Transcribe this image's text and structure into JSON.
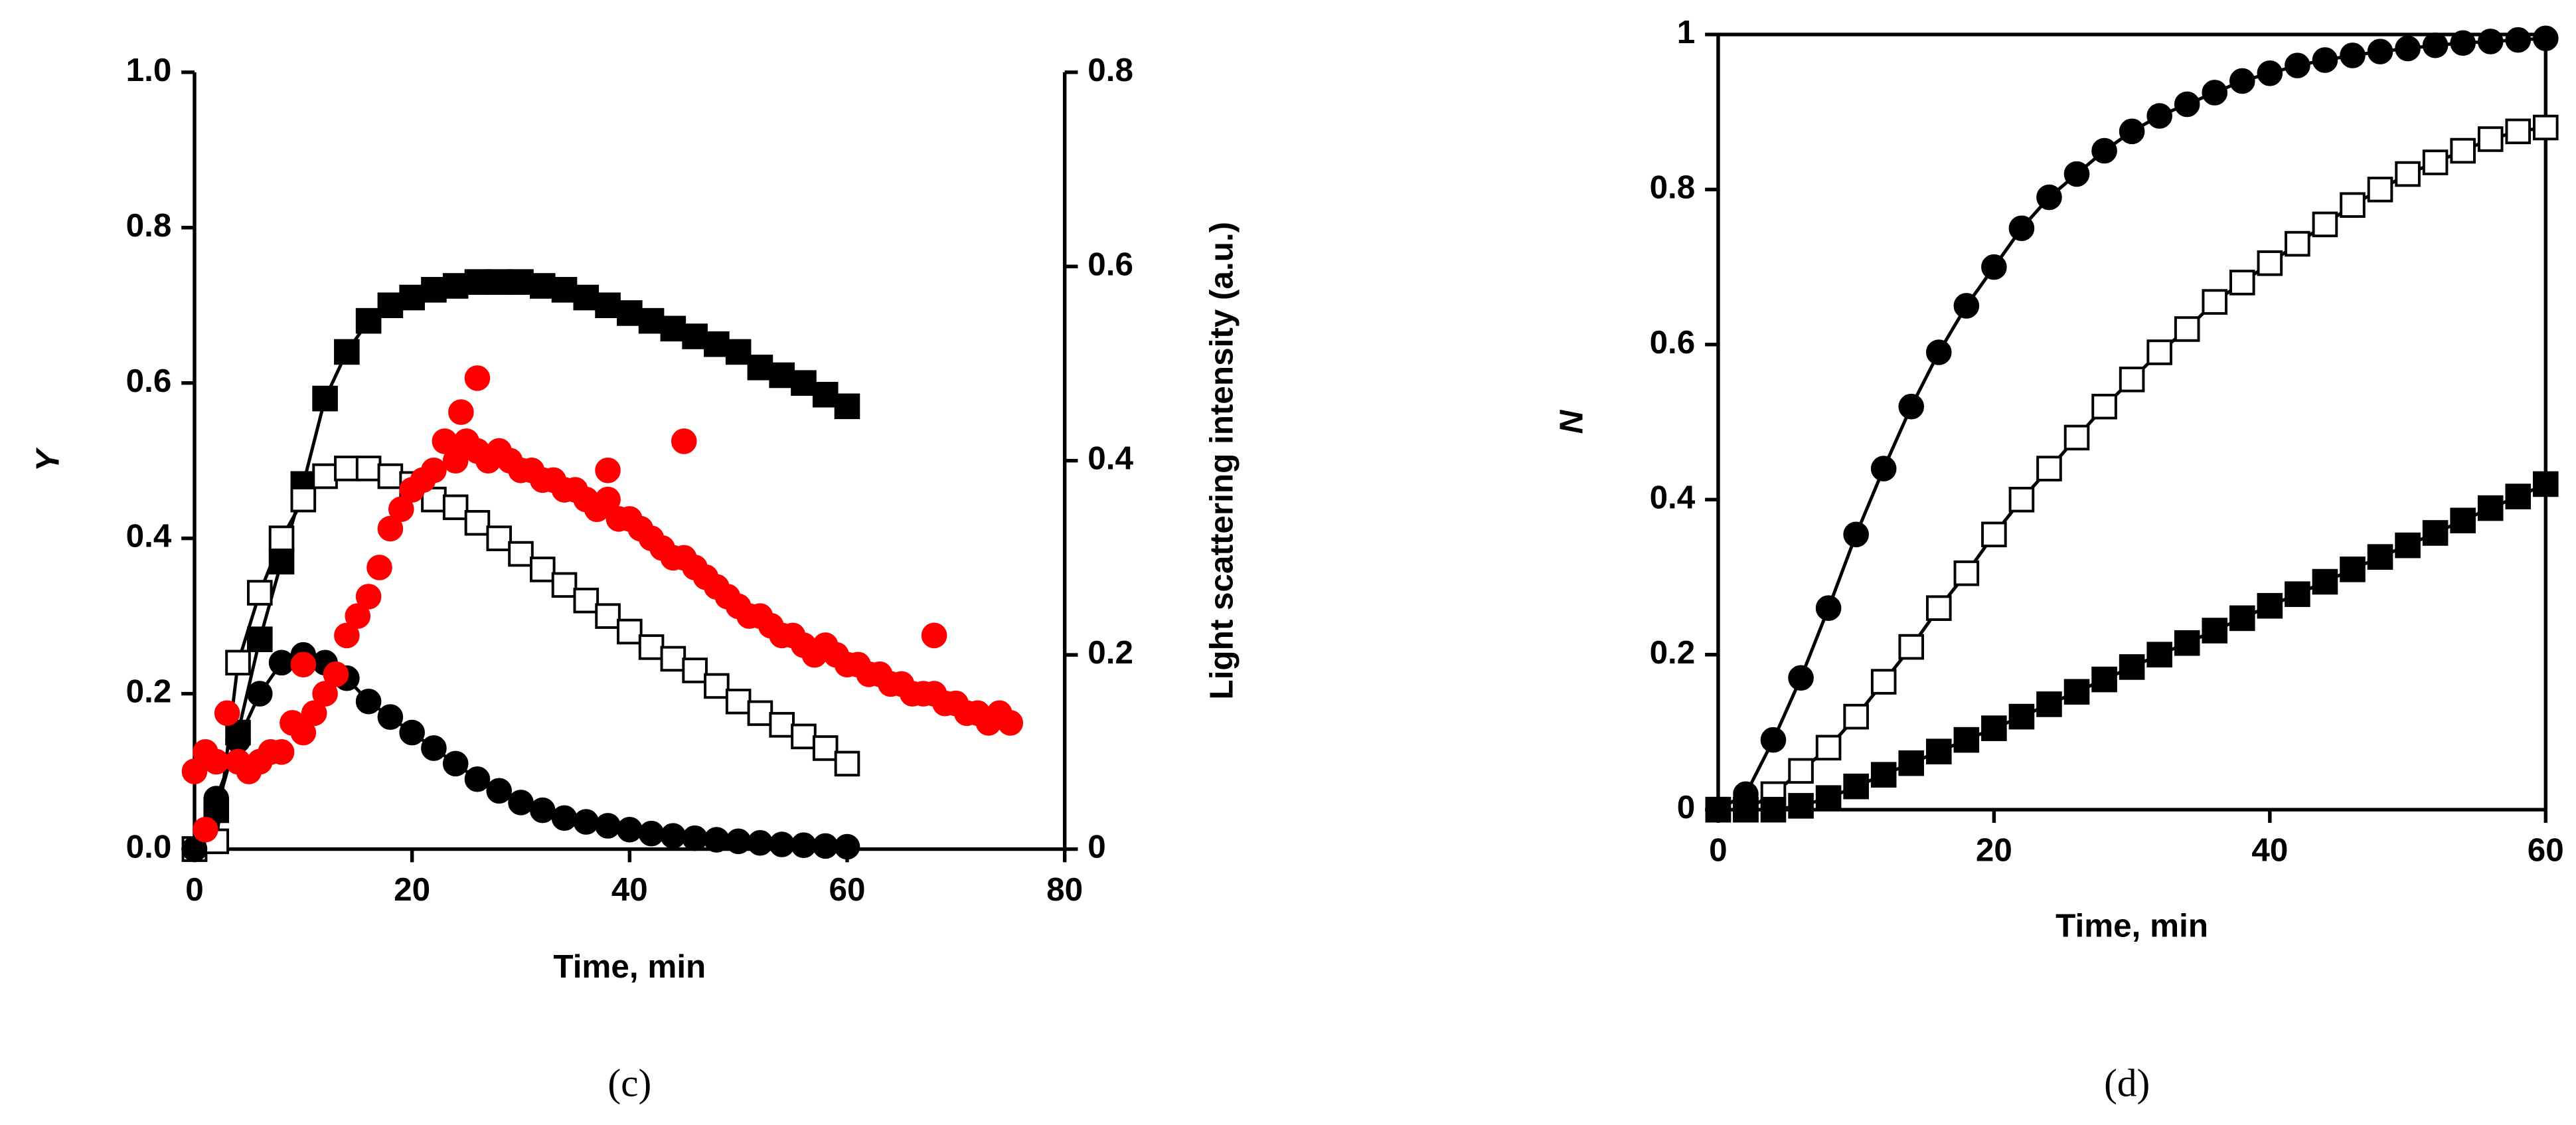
{
  "chart_data": [
    {
      "type": "scatter",
      "caption": "(c)",
      "xlabel": "Time, min",
      "ylabel": "Y",
      "y2label": "Light scattering intensity (a.u.)",
      "xlim": [
        0,
        80
      ],
      "xticks": [
        0,
        20,
        40,
        60,
        80
      ],
      "ylim": [
        0,
        1
      ],
      "yticks": [
        {
          "value": 0,
          "label": "0.0"
        },
        0.2,
        0.4,
        0.6,
        0.8,
        {
          "value": 1,
          "label": "1.0"
        }
      ],
      "y2lim": [
        0,
        0.8
      ],
      "y2ticks": [
        0,
        0.2,
        0.4,
        0.6,
        0.8
      ],
      "series": [
        {
          "marker": "square",
          "color": "#000000",
          "fill": "#000000",
          "line": true,
          "x": [
            0,
            2,
            4,
            6,
            8,
            10,
            12,
            14,
            16,
            18,
            20,
            22,
            24,
            26,
            28,
            30,
            32,
            34,
            36,
            38,
            40,
            42,
            44,
            46,
            48,
            50,
            52,
            54,
            56,
            58,
            60
          ],
          "values": [
            0,
            0.05,
            0.15,
            0.27,
            0.37,
            0.47,
            0.58,
            0.64,
            0.68,
            0.7,
            0.71,
            0.72,
            0.725,
            0.73,
            0.73,
            0.73,
            0.725,
            0.72,
            0.71,
            0.7,
            0.69,
            0.68,
            0.67,
            0.66,
            0.65,
            0.64,
            0.62,
            0.61,
            0.6,
            0.585,
            0.57
          ]
        },
        {
          "marker": "square",
          "color": "#000000",
          "fill": "#ffffff",
          "line": true,
          "x": [
            0,
            2,
            4,
            6,
            8,
            10,
            12,
            14,
            16,
            18,
            20,
            22,
            24,
            26,
            28,
            30,
            32,
            34,
            36,
            38,
            40,
            42,
            44,
            46,
            48,
            50,
            52,
            54,
            56,
            58,
            60
          ],
          "values": [
            0,
            0.01,
            0.24,
            0.33,
            0.4,
            0.45,
            0.48,
            0.49,
            0.49,
            0.48,
            0.47,
            0.45,
            0.44,
            0.42,
            0.4,
            0.38,
            0.36,
            0.34,
            0.32,
            0.3,
            0.28,
            0.26,
            0.245,
            0.23,
            0.21,
            0.19,
            0.175,
            0.16,
            0.145,
            0.13,
            0.11
          ]
        },
        {
          "marker": "circle",
          "color": "#000000",
          "fill": "#000000",
          "line": true,
          "x": [
            0,
            2,
            4,
            6,
            8,
            10,
            12,
            14,
            16,
            18,
            20,
            22,
            24,
            26,
            28,
            30,
            32,
            34,
            36,
            38,
            40,
            42,
            44,
            46,
            48,
            50,
            52,
            54,
            56,
            58,
            60
          ],
          "values": [
            0,
            0.065,
            0.14,
            0.2,
            0.24,
            0.25,
            0.24,
            0.22,
            0.19,
            0.17,
            0.15,
            0.13,
            0.11,
            0.09,
            0.075,
            0.06,
            0.05,
            0.04,
            0.035,
            0.03,
            0.025,
            0.02,
            0.017,
            0.014,
            0.012,
            0.01,
            0.008,
            0.006,
            0.005,
            0.004,
            0.003
          ]
        },
        {
          "marker": "circle",
          "color": "#ff0000",
          "fill": "#ff0000",
          "line": false,
          "axis": "y2",
          "x": [
            0,
            1,
            2,
            3,
            4,
            5,
            6,
            7,
            8,
            9,
            10,
            11,
            12,
            13,
            14,
            15,
            16,
            17,
            18,
            19,
            20,
            21,
            22,
            23,
            24,
            25,
            26,
            27,
            28,
            29,
            30,
            31,
            32,
            33,
            34,
            35,
            36,
            37,
            38,
            39,
            40,
            41,
            42,
            43,
            44,
            45,
            46,
            47,
            48,
            49,
            50,
            51,
            52,
            53,
            54,
            55,
            56,
            57,
            58,
            59,
            60,
            61,
            62,
            63,
            64,
            65,
            66,
            67,
            68,
            69,
            70,
            71,
            72,
            73,
            74,
            75,
            1,
            26,
            24.5,
            45,
            38,
            68,
            10
          ],
          "values": [
            0.08,
            0.1,
            0.09,
            0.14,
            0.09,
            0.08,
            0.09,
            0.1,
            0.1,
            0.13,
            0.12,
            0.14,
            0.16,
            0.18,
            0.22,
            0.24,
            0.26,
            0.29,
            0.33,
            0.35,
            0.37,
            0.38,
            0.39,
            0.42,
            0.4,
            0.42,
            0.41,
            0.4,
            0.41,
            0.4,
            0.39,
            0.39,
            0.38,
            0.38,
            0.37,
            0.37,
            0.36,
            0.35,
            0.36,
            0.34,
            0.34,
            0.33,
            0.32,
            0.31,
            0.3,
            0.3,
            0.29,
            0.28,
            0.27,
            0.26,
            0.25,
            0.24,
            0.24,
            0.23,
            0.22,
            0.22,
            0.21,
            0.2,
            0.21,
            0.2,
            0.19,
            0.19,
            0.18,
            0.18,
            0.17,
            0.17,
            0.16,
            0.16,
            0.16,
            0.15,
            0.15,
            0.14,
            0.14,
            0.13,
            0.14,
            0.13,
            0.02,
            0.485,
            0.45,
            0.42,
            0.39,
            0.22,
            0.19
          ]
        }
      ]
    },
    {
      "type": "scatter",
      "caption": "(d)",
      "xlabel": "Time, min",
      "ylabel": "N",
      "box": true,
      "xlim": [
        0,
        60
      ],
      "xticks": [
        0,
        20,
        40,
        60
      ],
      "ylim": [
        0,
        1
      ],
      "yticks": [
        0,
        0.2,
        0.4,
        0.6,
        0.8,
        1
      ],
      "series": [
        {
          "marker": "circle",
          "color": "#000000",
          "fill": "#000000",
          "line": true,
          "x": [
            0,
            2,
            4,
            6,
            8,
            10,
            12,
            14,
            16,
            18,
            20,
            22,
            24,
            26,
            28,
            30,
            32,
            34,
            36,
            38,
            40,
            42,
            44,
            46,
            48,
            50,
            52,
            54,
            56,
            58,
            60
          ],
          "values": [
            0,
            0.02,
            0.09,
            0.17,
            0.26,
            0.355,
            0.44,
            0.52,
            0.59,
            0.65,
            0.7,
            0.75,
            0.79,
            0.82,
            0.85,
            0.875,
            0.895,
            0.91,
            0.925,
            0.94,
            0.95,
            0.96,
            0.967,
            0.973,
            0.978,
            0.982,
            0.986,
            0.989,
            0.991,
            0.993,
            0.995
          ]
        },
        {
          "marker": "square",
          "color": "#000000",
          "fill": "#ffffff",
          "line": true,
          "x": [
            0,
            2,
            4,
            6,
            8,
            10,
            12,
            14,
            16,
            18,
            20,
            22,
            24,
            26,
            28,
            30,
            32,
            34,
            36,
            38,
            40,
            42,
            44,
            46,
            48,
            50,
            52,
            54,
            56,
            58,
            60
          ],
          "values": [
            0,
            0,
            0.02,
            0.05,
            0.08,
            0.12,
            0.165,
            0.21,
            0.26,
            0.305,
            0.355,
            0.4,
            0.44,
            0.48,
            0.52,
            0.555,
            0.59,
            0.62,
            0.655,
            0.68,
            0.705,
            0.73,
            0.755,
            0.78,
            0.8,
            0.82,
            0.835,
            0.85,
            0.865,
            0.875,
            0.88
          ]
        },
        {
          "marker": "square",
          "color": "#000000",
          "fill": "#000000",
          "line": true,
          "x": [
            0,
            2,
            4,
            6,
            8,
            10,
            12,
            14,
            16,
            18,
            20,
            22,
            24,
            26,
            28,
            30,
            32,
            34,
            36,
            38,
            40,
            42,
            44,
            46,
            48,
            50,
            52,
            54,
            56,
            58,
            60
          ],
          "values": [
            0,
            0,
            0,
            0.005,
            0.015,
            0.03,
            0.045,
            0.06,
            0.075,
            0.09,
            0.105,
            0.12,
            0.136,
            0.152,
            0.168,
            0.184,
            0.2,
            0.215,
            0.231,
            0.247,
            0.263,
            0.278,
            0.294,
            0.31,
            0.326,
            0.341,
            0.357,
            0.373,
            0.389,
            0.404,
            0.42
          ]
        }
      ]
    }
  ]
}
